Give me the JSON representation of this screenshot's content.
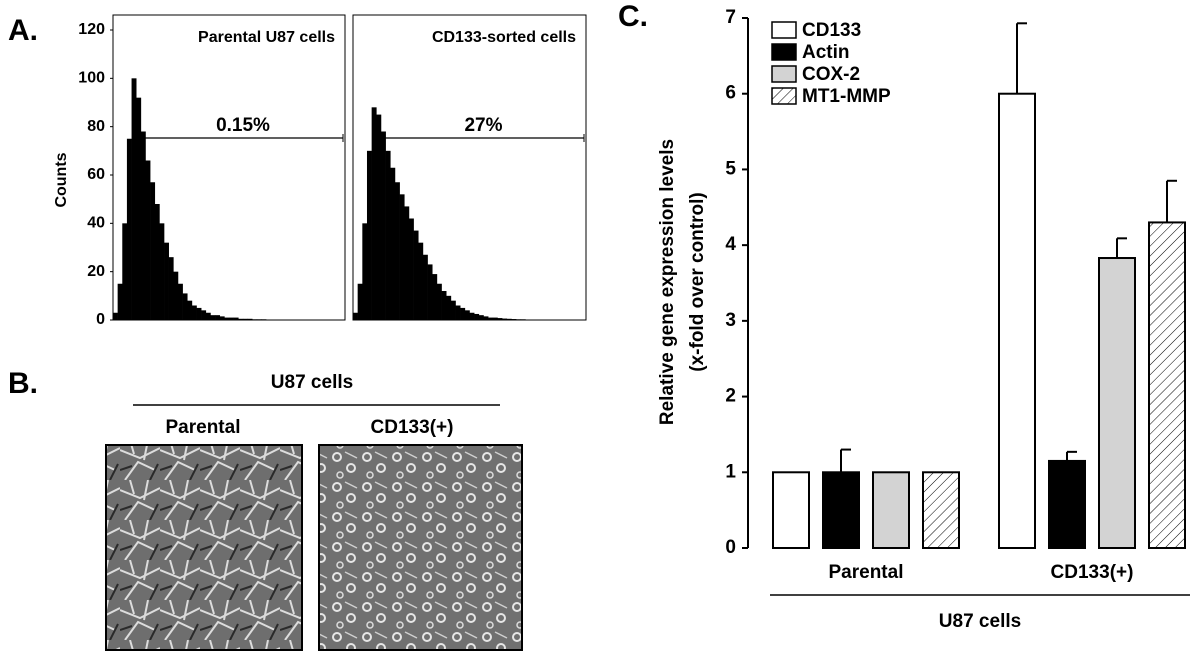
{
  "chart_data": [
    {
      "type": "histogram",
      "panel_label": "A.",
      "title": "Parental U87 cells",
      "y_label": "Counts",
      "annotation": "0.15%",
      "color": "#000000",
      "ylim": [
        0,
        120
      ],
      "yticks": [
        0,
        20,
        40,
        60,
        80,
        100,
        120
      ],
      "values": [
        3,
        15,
        40,
        75,
        100,
        92,
        78,
        66,
        57,
        48,
        40,
        32,
        26,
        20,
        15,
        11,
        8,
        6,
        5,
        4,
        3,
        2,
        2,
        1.5,
        1,
        1,
        1,
        0.5,
        0.5,
        0.5,
        0.3,
        0.3,
        0.3,
        0.2,
        0.2,
        0.2,
        0,
        0,
        0,
        0,
        0,
        0,
        0,
        0,
        0,
        0,
        0,
        0,
        0,
        0
      ]
    },
    {
      "type": "histogram",
      "title": "CD133-sorted cells",
      "annotation": "27%",
      "color": "#000000",
      "ylim": [
        0,
        120
      ],
      "values": [
        3,
        15,
        40,
        70,
        88,
        85,
        78,
        70,
        63,
        57,
        52,
        47,
        42,
        37,
        32,
        27,
        23,
        19,
        15,
        12,
        10,
        8,
        6,
        5,
        4,
        3,
        2.5,
        2,
        1.5,
        1,
        1,
        0.8,
        0.6,
        0.5,
        0.4,
        0.3,
        0.3,
        0.2,
        0.2,
        0.1,
        0,
        0,
        0,
        0,
        0,
        0,
        0,
        0,
        0,
        0
      ]
    },
    {
      "type": "bar",
      "panel_label": "C.",
      "y_label": [
        "Relative gene expression levels",
        "(x-fold over control)"
      ],
      "x_label": "U87 cells",
      "categories": [
        "Parental",
        "CD133(+)"
      ],
      "ylim": [
        0,
        7
      ],
      "yticks": [
        0,
        1,
        2,
        3,
        4,
        5,
        6,
        7
      ],
      "legend": "upper left",
      "series": [
        {
          "name": "CD133",
          "color": "#ffffff",
          "values": [
            1,
            6
          ],
          "errors": [
            0,
            0.93
          ]
        },
        {
          "name": "Actin",
          "color": "#000000",
          "values": [
            1,
            1.15
          ],
          "errors": [
            0.3,
            0.12
          ]
        },
        {
          "name": "COX-2",
          "color": "#d3d3d3",
          "values": [
            1,
            3.83
          ],
          "errors": [
            0,
            0.26
          ]
        },
        {
          "name": "MT1-MMP",
          "color": "#ffffff",
          "hatch": true,
          "values": [
            1,
            4.3
          ],
          "errors": [
            0,
            0.55
          ]
        }
      ]
    }
  ],
  "panel_b": {
    "panel_label": "B.",
    "group_label": "U87 cells",
    "images": [
      {
        "caption": "Parental"
      },
      {
        "caption": "CD133(+)"
      }
    ]
  }
}
